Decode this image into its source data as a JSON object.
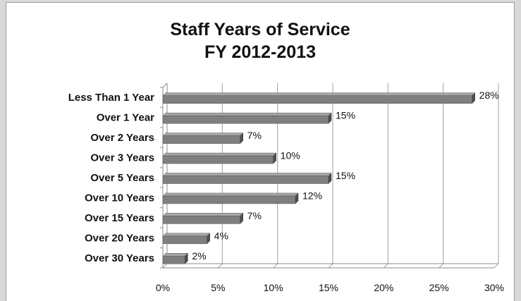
{
  "chart_data": {
    "type": "bar",
    "orientation": "horizontal",
    "title": [
      "Staff Years of Service",
      "FY 2012-2013"
    ],
    "categories": [
      "Less Than 1 Year",
      "Over 1 Year",
      "Over 2 Years",
      "Over 3 Years",
      "Over 5 Years",
      "Over 10 Years",
      "Over 15 Years",
      "Over 20 Years",
      "Over 30 Years"
    ],
    "values": [
      28,
      15,
      7,
      10,
      15,
      12,
      7,
      4,
      2
    ],
    "data_labels": [
      "28%",
      "15%",
      "7%",
      "10%",
      "15%",
      "12%",
      "7%",
      "4%",
      "2%"
    ],
    "xlim": [
      0,
      30
    ],
    "xticks": [
      0,
      5,
      10,
      15,
      20,
      25,
      30
    ],
    "xtick_labels": [
      "0%",
      "5%",
      "10%",
      "15%",
      "20%",
      "25%",
      "30%"
    ],
    "grid": "vertical",
    "legend": "none",
    "bar_color": "#7f7f7f",
    "bar_top_color": "#a6a6a6",
    "bar_side_color": "#4d4d4d"
  }
}
